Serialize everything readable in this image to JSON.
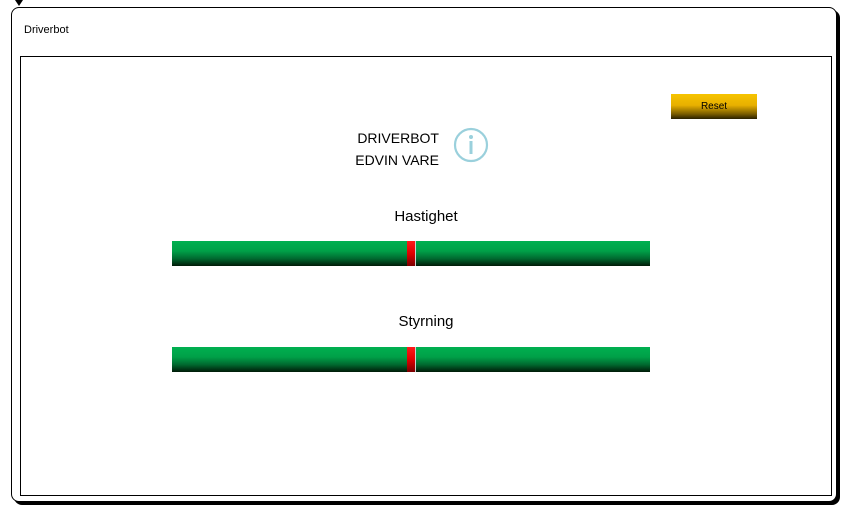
{
  "window": {
    "title": "Driverbot"
  },
  "toolbar": {
    "reset_label": "Reset"
  },
  "header": {
    "line1": "DRIVERBOT",
    "line2": "EDVIN VARE",
    "info_icon": "info-icon",
    "info_icon_color": "#9ad0dc"
  },
  "sliders": [
    {
      "label": "Hastighet",
      "value": 0.5
    },
    {
      "label": "Styrning",
      "value": 0.5
    }
  ],
  "colors": {
    "slider_track": "#00b050",
    "slider_thumb": "#e00000",
    "reset_button": "#f6c400"
  }
}
